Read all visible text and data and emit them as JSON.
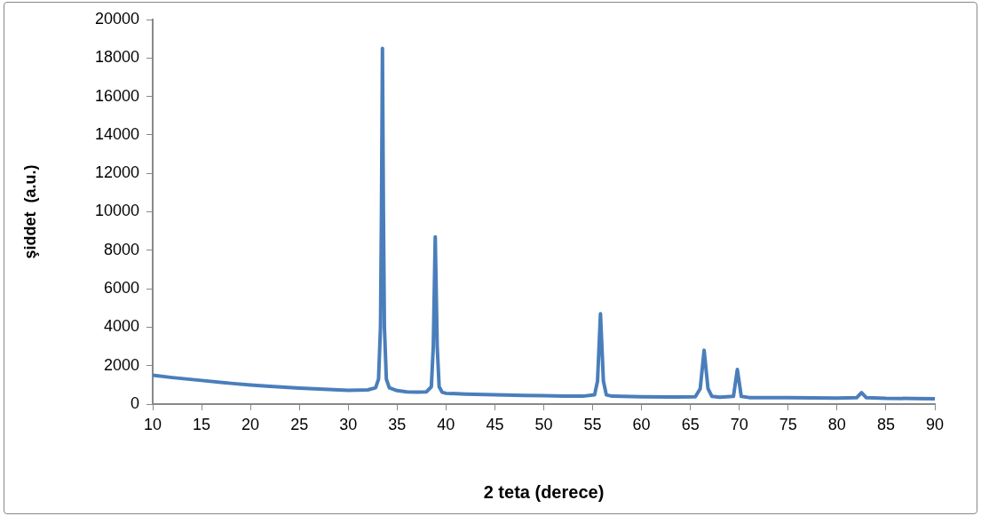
{
  "chart_data": {
    "type": "line",
    "xlabel": "2 teta (derece)",
    "ylabel": "şiddet  (a.u.)",
    "xlim": [
      10,
      90
    ],
    "xticks": [
      10,
      15,
      20,
      25,
      30,
      35,
      40,
      45,
      50,
      55,
      60,
      65,
      70,
      75,
      80,
      85,
      90
    ],
    "ylim": [
      0,
      20000
    ],
    "yticks": [
      0,
      2000,
      4000,
      6000,
      8000,
      10000,
      12000,
      14000,
      16000,
      18000,
      20000
    ],
    "grid": false,
    "legend": false,
    "marker": "none",
    "line_style": "solid",
    "series": [
      {
        "color": "#4a7ebb",
        "x": [
          10,
          12,
          15,
          18,
          20,
          22,
          25,
          28,
          30,
          32,
          32.8,
          33.1,
          33.3,
          33.4,
          33.5,
          33.6,
          33.7,
          33.9,
          34.2,
          35,
          36,
          37,
          38,
          38.5,
          38.7,
          38.9,
          39.1,
          39.3,
          39.6,
          40,
          42,
          45,
          48,
          50,
          52,
          54,
          55.2,
          55.5,
          55.8,
          56.1,
          56.4,
          57,
          60,
          63,
          65.5,
          66,
          66.4,
          66.8,
          67.2,
          68,
          69.4,
          69.8,
          70.2,
          71,
          75,
          80,
          82,
          82.5,
          83,
          85,
          88,
          90
        ],
        "values": [
          1500,
          1380,
          1230,
          1080,
          990,
          920,
          830,
          760,
          720,
          740,
          850,
          1300,
          4000,
          10000,
          18500,
          10000,
          4000,
          1300,
          850,
          700,
          640,
          620,
          640,
          900,
          3000,
          8700,
          3000,
          900,
          620,
          560,
          520,
          480,
          450,
          440,
          420,
          410,
          480,
          1200,
          4700,
          1200,
          480,
          410,
          380,
          370,
          380,
          800,
          2800,
          800,
          400,
          360,
          400,
          1800,
          400,
          340,
          330,
          310,
          330,
          600,
          330,
          300,
          290,
          280
        ]
      }
    ]
  }
}
